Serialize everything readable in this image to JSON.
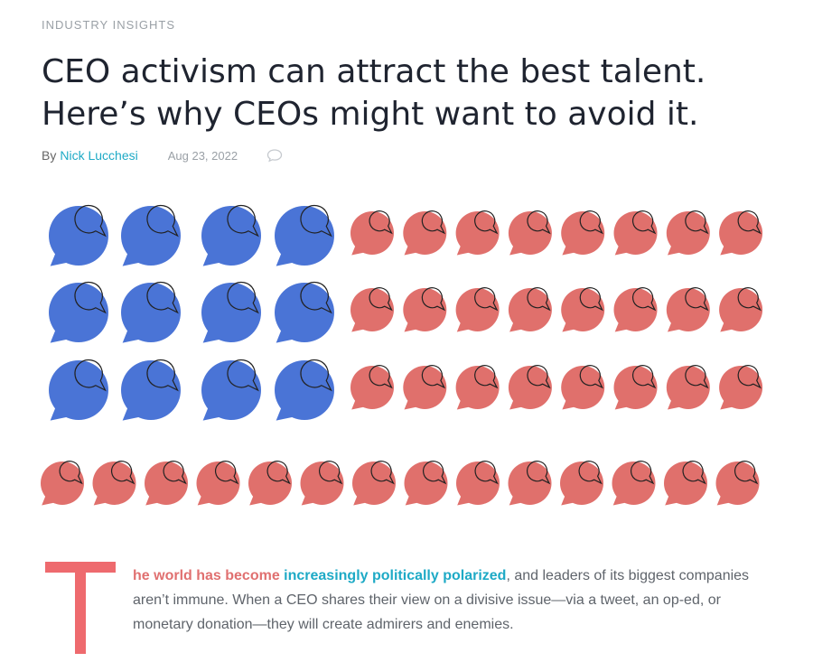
{
  "header": {
    "category": "INDUSTRY INSIGHTS",
    "title_line1": "CEO activism can attract the best talent.",
    "title_line2": "Here’s why CEOs might want to avoid it."
  },
  "byline": {
    "by_label": "By",
    "author": "Nick Lucchesi",
    "date": "Aug 23, 2022",
    "comment_icon": "comment-icon"
  },
  "illustration": {
    "icon": "speech-bubble-icon",
    "colors": {
      "blue": "#4a74d6",
      "red": "#e0706c",
      "outline": "#222222"
    },
    "rows": [
      {
        "blue": 4,
        "red": 8
      },
      {
        "blue": 4,
        "red": 8
      },
      {
        "blue": 4,
        "red": 8
      },
      {
        "blue": 0,
        "red": 14
      }
    ]
  },
  "article": {
    "drop_cap": "T",
    "lead": "he world has become ",
    "link_text": "increasingly politically polarized",
    "body": ", and leaders of its biggest companies aren’t immune. When a CEO shares their view on a divisive issue—via a tweet, an op-ed, or monetary donation—they will create admirers and enemies."
  }
}
